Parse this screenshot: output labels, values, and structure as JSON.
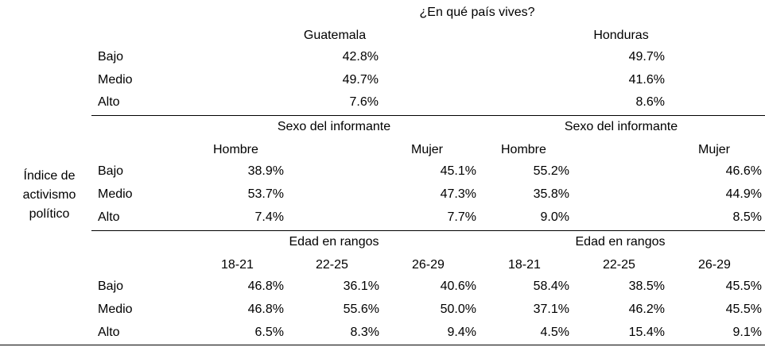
{
  "row_label": "Índice de activismo político",
  "row_label_lines": [
    "Índice de",
    "activismo",
    "político"
  ],
  "row_categories": [
    "Bajo",
    "Medio",
    "Alto"
  ],
  "section_country": {
    "title": "¿En qué país vives?",
    "columns": [
      "Guatemala",
      "Honduras"
    ],
    "values": [
      [
        "42.8%",
        "49.7%"
      ],
      [
        "49.7%",
        "41.6%"
      ],
      [
        "7.6%",
        "8.6%"
      ]
    ]
  },
  "section_sex": {
    "titles": [
      "Sexo del informante",
      "Sexo del informante"
    ],
    "columns": [
      "Hombre",
      "Mujer",
      "Hombre",
      "Mujer"
    ],
    "values": [
      [
        "38.9%",
        "45.1%",
        "55.2%",
        "46.6%"
      ],
      [
        "53.7%",
        "47.3%",
        "35.8%",
        "44.9%"
      ],
      [
        "7.4%",
        "7.7%",
        "9.0%",
        "8.5%"
      ]
    ]
  },
  "section_age": {
    "titles": [
      "Edad en rangos",
      "Edad en rangos"
    ],
    "columns": [
      "18-21",
      "22-25",
      "26-29",
      "18-21",
      "22-25",
      "26-29"
    ],
    "values": [
      [
        "46.8%",
        "36.1%",
        "40.6%",
        "58.4%",
        "38.5%",
        "45.5%"
      ],
      [
        "46.8%",
        "55.6%",
        "50.0%",
        "37.1%",
        "46.2%",
        "45.5%"
      ],
      [
        "6.5%",
        "8.3%",
        "9.4%",
        "4.5%",
        "15.4%",
        "9.1%"
      ]
    ]
  }
}
